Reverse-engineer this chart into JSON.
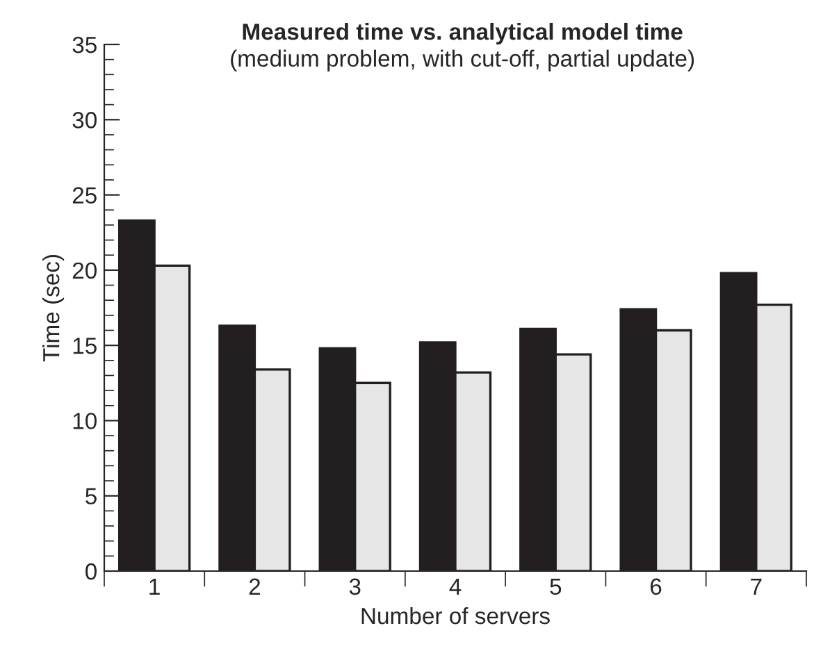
{
  "chart_data": {
    "type": "bar",
    "title": "Measured time vs. analytical model time",
    "subtitle": "(medium problem, with cut-off, partial update)",
    "xlabel": "Number of servers",
    "ylabel": "Time (sec)",
    "categories": [
      "1",
      "2",
      "3",
      "4",
      "5",
      "6",
      "7"
    ],
    "series": [
      {
        "color": "#231f20",
        "values": [
          23.3,
          16.3,
          14.8,
          15.2,
          16.1,
          17.4,
          19.8
        ]
      },
      {
        "color": "#e6e6e6",
        "values": [
          20.3,
          13.4,
          12.5,
          13.2,
          14.4,
          16.0,
          17.7
        ]
      }
    ],
    "ylim": [
      0,
      35
    ],
    "yticks": [
      0,
      5,
      10,
      15,
      20,
      25,
      30,
      35
    ],
    "grid": false,
    "legend": false
  }
}
